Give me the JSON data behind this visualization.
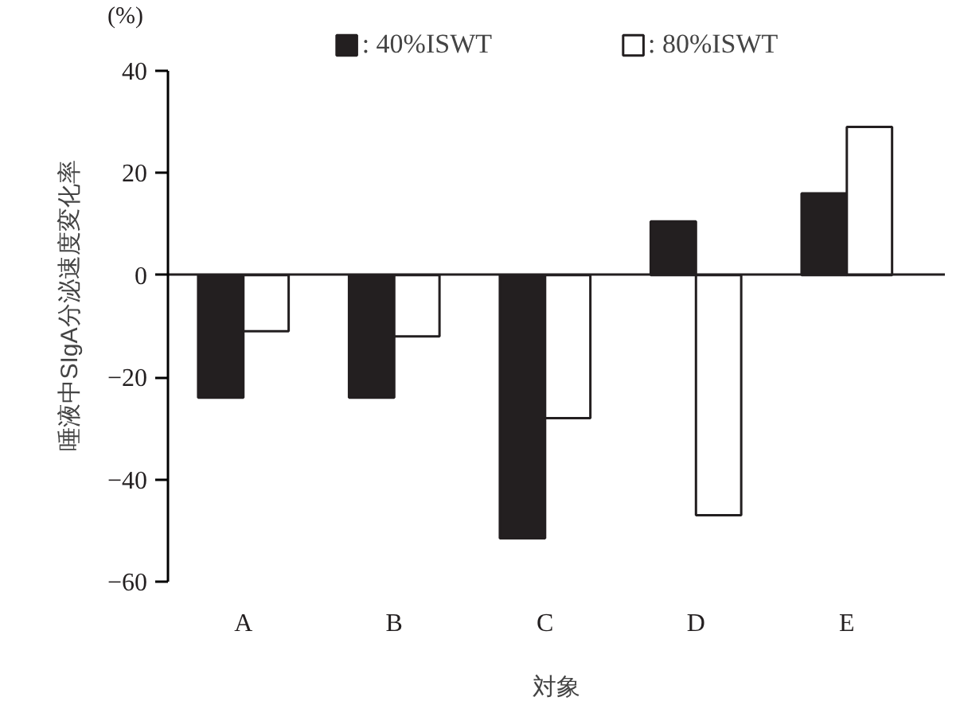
{
  "chart_data": {
    "type": "bar",
    "categories": [
      "A",
      "B",
      "C",
      "D",
      "E"
    ],
    "series": [
      {
        "name": ": 40%ISWT",
        "color": "#231f20",
        "values": [
          -24,
          -24,
          -51.5,
          10.5,
          16
        ]
      },
      {
        "name": ": 80%ISWT",
        "color": "#ffffff",
        "values": [
          -11,
          -12,
          -28,
          -47,
          29
        ]
      }
    ],
    "xlabel": "対象",
    "ylabel": "唾液中SIgA分泌速度変化率",
    "annotations": [
      "(%)"
    ],
    "ylim": [
      -60,
      40
    ],
    "yticks": [
      -60,
      -40,
      -20,
      0,
      20,
      40
    ],
    "legend": "top"
  }
}
